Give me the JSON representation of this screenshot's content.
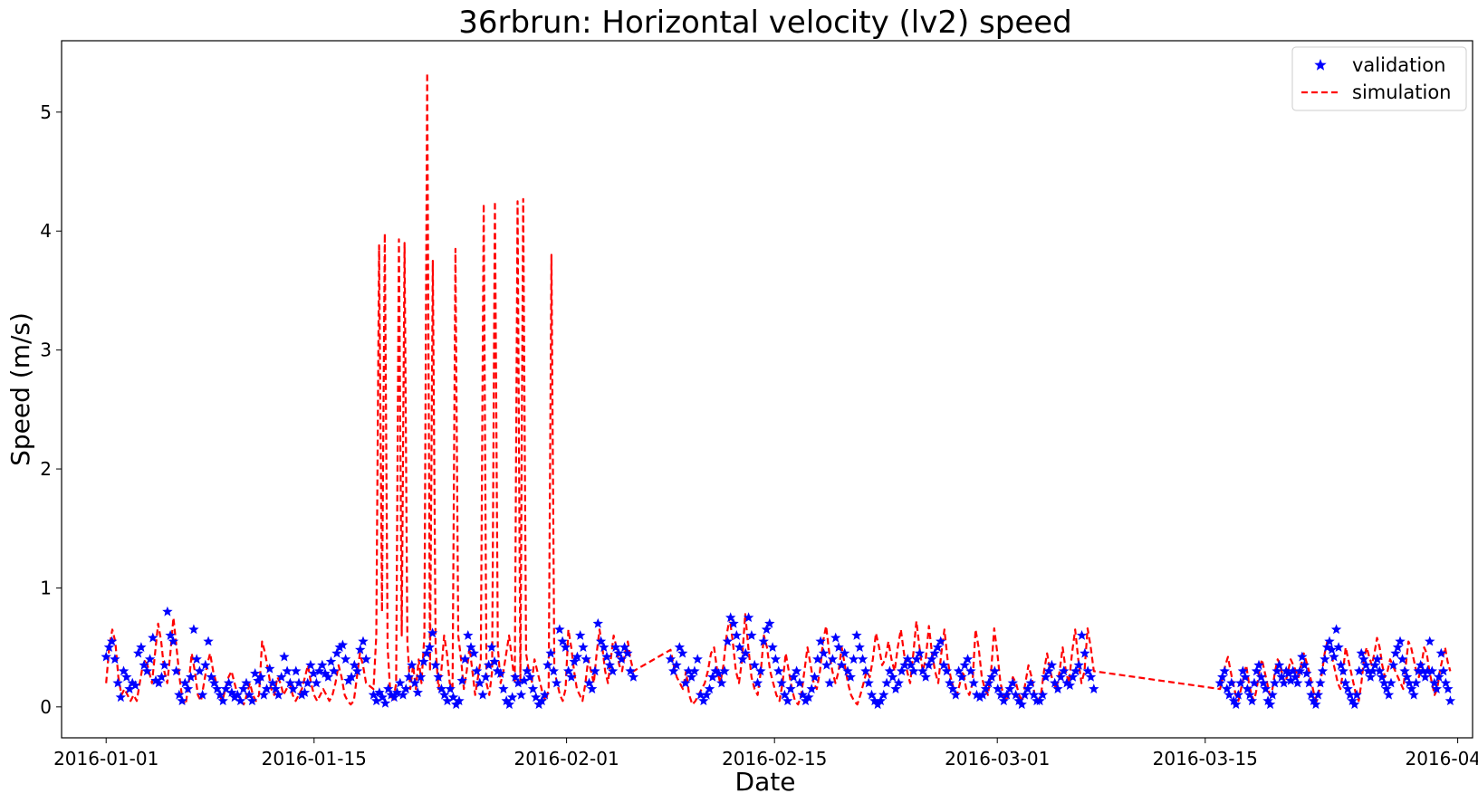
{
  "chart_data": {
    "type": "line",
    "title": "36rbrun: Horizontal velocity (lv2) speed",
    "xlabel": "Date",
    "ylabel": "Speed (m/s)",
    "x_axis": "date",
    "xlim": [
      "2015-12-29",
      "2016-04-02"
    ],
    "ylim": [
      -0.26,
      5.6
    ],
    "x_ticks": [
      "2016-01-01",
      "2016-01-15",
      "2016-02-01",
      "2016-02-15",
      "2016-03-01",
      "2016-03-15",
      "2016-04-01"
    ],
    "y_ticks": [
      0,
      1,
      2,
      3,
      4,
      5
    ],
    "grid": false,
    "legend_position": "top-right",
    "series": [
      {
        "name": "validation",
        "style": "marker-star",
        "color": "#0000ff",
        "segments": [
          {
            "start": "2016-01-01",
            "end": "2016-01-18",
            "values": [
              0.42,
              0.5,
              0.55,
              0.4,
              0.2,
              0.08,
              0.3,
              0.25,
              0.15,
              0.2,
              0.18,
              0.45,
              0.5,
              0.35,
              0.3,
              0.4,
              0.58,
              0.22,
              0.2,
              0.25,
              0.35,
              0.8,
              0.6,
              0.55,
              0.3,
              0.1,
              0.05,
              0.2,
              0.15,
              0.25,
              0.65,
              0.4,
              0.3,
              0.1,
              0.35,
              0.55,
              0.25,
              0.2,
              0.15,
              0.1,
              0.05,
              0.15,
              0.2,
              0.12,
              0.08,
              0.1,
              0.05,
              0.15,
              0.2,
              0.1,
              0.05,
              0.28,
              0.22,
              0.25,
              0.1,
              0.15,
              0.32,
              0.2,
              0.15,
              0.1,
              0.25,
              0.42,
              0.3,
              0.2,
              0.15,
              0.3,
              0.2,
              0.1,
              0.12,
              0.2,
              0.35,
              0.28,
              0.2,
              0.3,
              0.35,
              0.28,
              0.25,
              0.38,
              0.3,
              0.45,
              0.5,
              0.52,
              0.4,
              0.22,
              0.25,
              0.35,
              0.3,
              0.48,
              0.55,
              0.4
            ]
          },
          {
            "start": "2016-01-19",
            "end": "2016-02-05",
            "values": [
              0.1,
              0.05,
              0.12,
              0.08,
              0.03,
              0.15,
              0.1,
              0.08,
              0.12,
              0.2,
              0.1,
              0.15,
              0.25,
              0.35,
              0.2,
              0.12,
              0.25,
              0.38,
              0.45,
              0.5,
              0.62,
              0.35,
              0.25,
              0.15,
              0.1,
              0.05,
              0.15,
              0.08,
              0.02,
              0.05,
              0.22,
              0.4,
              0.6,
              0.5,
              0.45,
              0.3,
              0.2,
              0.1,
              0.25,
              0.35,
              0.5,
              0.38,
              0.3,
              0.28,
              0.15,
              0.05,
              0.02,
              0.08,
              0.25,
              0.2,
              0.1,
              0.22,
              0.3,
              0.25,
              0.15,
              0.08,
              0.02,
              0.05,
              0.1,
              0.35,
              0.45,
              0.3,
              0.2,
              0.65,
              0.55,
              0.5,
              0.3,
              0.25,
              0.38,
              0.42,
              0.6,
              0.5,
              0.4,
              0.2,
              0.15,
              0.3,
              0.7,
              0.55,
              0.5,
              0.42,
              0.35,
              0.3,
              0.5,
              0.45,
              0.4,
              0.5,
              0.45,
              0.3,
              0.25
            ]
          },
          {
            "start": "2016-02-08",
            "end": "2016-03-07",
            "values": [
              0.4,
              0.3,
              0.35,
              0.5,
              0.45,
              0.2,
              0.3,
              0.25,
              0.3,
              0.4,
              0.1,
              0.05,
              0.1,
              0.15,
              0.25,
              0.3,
              0.28,
              0.2,
              0.3,
              0.55,
              0.75,
              0.7,
              0.6,
              0.5,
              0.4,
              0.45,
              0.75,
              0.6,
              0.35,
              0.2,
              0.3,
              0.55,
              0.65,
              0.7,
              0.5,
              0.4,
              0.3,
              0.2,
              0.1,
              0.05,
              0.15,
              0.25,
              0.3,
              0.2,
              0.1,
              0.05,
              0.08,
              0.15,
              0.25,
              0.4,
              0.55,
              0.45,
              0.35,
              0.2,
              0.4,
              0.58,
              0.5,
              0.35,
              0.45,
              0.3,
              0.25,
              0.4,
              0.6,
              0.5,
              0.4,
              0.3,
              0.2,
              0.1,
              0.05,
              0.02,
              0.05,
              0.1,
              0.2,
              0.3,
              0.25,
              0.15,
              0.2,
              0.3,
              0.35,
              0.4,
              0.35,
              0.3,
              0.4,
              0.45,
              0.3,
              0.25,
              0.35,
              0.4,
              0.45,
              0.5,
              0.55,
              0.35,
              0.3,
              0.2,
              0.15,
              0.1,
              0.3,
              0.25,
              0.35,
              0.4,
              0.3,
              0.2,
              0.1,
              0.08,
              0.1,
              0.15,
              0.2,
              0.25,
              0.3,
              0.15,
              0.1,
              0.05,
              0.1,
              0.15,
              0.2,
              0.1,
              0.05,
              0.02,
              0.1,
              0.15,
              0.2,
              0.1,
              0.05,
              0.05,
              0.1,
              0.25,
              0.3,
              0.35,
              0.2,
              0.15,
              0.25,
              0.3,
              0.2,
              0.18,
              0.25,
              0.3,
              0.35,
              0.6,
              0.45,
              0.3,
              0.25,
              0.15
            ]
          },
          {
            "start": "2016-03-16",
            "end": "2016-03-31",
            "values": [
              0.2,
              0.25,
              0.3,
              0.15,
              0.1,
              0.2,
              0.05,
              0.02,
              0.1,
              0.2,
              0.3,
              0.25,
              0.15,
              0.1,
              0.05,
              0.2,
              0.3,
              0.35,
              0.25,
              0.2,
              0.15,
              0.05,
              0.02,
              0.1,
              0.2,
              0.3,
              0.35,
              0.25,
              0.2,
              0.3,
              0.28,
              0.22,
              0.3,
              0.25,
              0.2,
              0.3,
              0.42,
              0.35,
              0.28,
              0.2,
              0.1,
              0.05,
              0.02,
              0.1,
              0.2,
              0.3,
              0.4,
              0.5,
              0.55,
              0.48,
              0.42,
              0.65,
              0.5,
              0.35,
              0.3,
              0.2,
              0.15,
              0.1,
              0.05,
              0.02,
              0.1,
              0.3,
              0.45,
              0.4,
              0.35,
              0.3,
              0.25,
              0.3,
              0.35,
              0.4,
              0.3,
              0.25,
              0.2,
              0.15,
              0.1,
              0.2,
              0.35,
              0.45,
              0.5,
              0.55,
              0.4,
              0.3,
              0.25,
              0.2,
              0.15,
              0.1,
              0.2,
              0.3,
              0.35,
              0.3,
              0.25,
              0.3,
              0.55,
              0.3,
              0.2,
              0.15,
              0.25,
              0.45,
              0.3,
              0.2,
              0.15,
              0.05
            ]
          }
        ]
      },
      {
        "name": "simulation",
        "style": "dashed-line",
        "color": "#ff0000",
        "segments": [
          {
            "start": "2016-01-01",
            "end": "2016-01-18",
            "values": [
              0.2,
              0.5,
              0.65,
              0.55,
              0.25,
              0.1,
              0.15,
              0.1,
              0.05,
              0.1,
              0.05,
              0.2,
              0.35,
              0.4,
              0.3,
              0.2,
              0.45,
              0.7,
              0.55,
              0.3,
              0.2,
              0.45,
              0.75,
              0.5,
              0.25,
              0.05,
              0.02,
              0.2,
              0.45,
              0.3,
              0.1,
              0.05,
              0.2,
              0.35,
              0.45,
              0.3,
              0.2,
              0.1,
              0.05,
              0.15,
              0.25,
              0.3,
              0.2,
              0.1,
              0.05,
              0.02,
              0.1,
              0.2,
              0.1,
              0.05,
              0.1,
              0.55,
              0.45,
              0.3,
              0.15,
              0.1,
              0.25,
              0.2,
              0.1,
              0.15,
              0.2,
              0.1,
              0.05,
              0.1,
              0.15,
              0.25,
              0.35,
              0.2,
              0.1,
              0.05,
              0.1,
              0.15,
              0.1,
              0.05,
              0.1,
              0.2,
              0.35,
              0.25,
              0.1,
              0.05,
              0.02,
              0.05,
              0.25,
              0.45,
              0.35,
              0.2
            ]
          },
          {
            "start": "2016-01-19",
            "end": "2016-02-05",
            "values": [
              0.15,
              0.6,
              3.88,
              0.8,
              3.98,
              0.5,
              0.1,
              0.05,
              0.2,
              3.93,
              0.6,
              3.9,
              0.55,
              0.15,
              0.35,
              0.15,
              0.4,
              0.2,
              0.6,
              5.33,
              0.3,
              3.75,
              0.5,
              0.15,
              0.3,
              0.6,
              0.45,
              0.2,
              0.15,
              3.85,
              0.6,
              0.4,
              0.15,
              0.3,
              0.5,
              0.3,
              0.1,
              0.25,
              0.4,
              4.23,
              0.2,
              0.1,
              0.3,
              4.25,
              0.5,
              0.2,
              0.3,
              0.45,
              0.6,
              0.4,
              0.2,
              4.25,
              0.2,
              4.27,
              0.45,
              0.3,
              0.2,
              0.4,
              0.3,
              0.2,
              0.1,
              0.05,
              0.15,
              3.8,
              0.3,
              0.2,
              0.1,
              0.05,
              0.15,
              0.65,
              0.5,
              0.3,
              0.15,
              0.1,
              0.05,
              0.2,
              0.4,
              0.3,
              0.2,
              0.45,
              0.65,
              0.5,
              0.3,
              0.2,
              0.4,
              0.6,
              0.5,
              0.35,
              0.3,
              0.45,
              0.55,
              0.4,
              0.3
            ]
          },
          {
            "start": "2016-02-08",
            "end": "2016-03-07",
            "values": [
              0.48,
              0.35,
              0.25,
              0.2,
              0.15,
              0.3,
              0.1,
              0.02,
              0.05,
              0.1,
              0.15,
              0.2,
              0.3,
              0.45,
              0.5,
              0.3,
              0.2,
              0.35,
              0.6,
              0.75,
              0.55,
              0.3,
              0.2,
              0.4,
              0.78,
              0.5,
              0.25,
              0.15,
              0.1,
              0.3,
              0.6,
              0.5,
              0.3,
              0.2,
              0.1,
              0.05,
              0.2,
              0.45,
              0.3,
              0.15,
              0.05,
              0.02,
              0.1,
              0.3,
              0.5,
              0.35,
              0.2,
              0.15,
              0.3,
              0.55,
              0.68,
              0.45,
              0.3,
              0.2,
              0.3,
              0.5,
              0.35,
              0.2,
              0.1,
              0.05,
              0.02,
              0.1,
              0.2,
              0.3,
              0.25,
              0.4,
              0.62,
              0.5,
              0.35,
              0.4,
              0.55,
              0.4,
              0.3,
              0.5,
              0.65,
              0.45,
              0.3,
              0.2,
              0.45,
              0.72,
              0.5,
              0.3,
              0.4,
              0.68,
              0.45,
              0.3,
              0.2,
              0.45,
              0.65,
              0.4,
              0.25,
              0.15,
              0.1,
              0.2,
              0.3,
              0.15,
              0.1,
              0.2,
              0.65,
              0.5,
              0.25,
              0.15,
              0.1,
              0.3,
              0.66,
              0.45,
              0.2,
              0.1,
              0.05,
              0.15,
              0.25,
              0.2,
              0.1,
              0.05,
              0.2,
              0.35,
              0.25,
              0.1,
              0.05,
              0.1,
              0.3,
              0.45,
              0.3,
              0.2,
              0.15,
              0.3,
              0.5,
              0.3,
              0.2,
              0.45,
              0.65,
              0.4,
              0.2,
              0.3,
              0.66,
              0.5,
              0.3
            ]
          },
          {
            "start": "2016-03-16",
            "end": "2016-03-31",
            "values": [
              0.15,
              0.25,
              0.35,
              0.42,
              0.3,
              0.2,
              0.1,
              0.05,
              0.15,
              0.25,
              0.35,
              0.2,
              0.1,
              0.05,
              0.15,
              0.3,
              0.4,
              0.3,
              0.2,
              0.1,
              0.15,
              0.3,
              0.4,
              0.35,
              0.25,
              0.2,
              0.3,
              0.4,
              0.35,
              0.3,
              0.25,
              0.35,
              0.45,
              0.38,
              0.3,
              0.2,
              0.1,
              0.05,
              0.15,
              0.3,
              0.45,
              0.55,
              0.48,
              0.4,
              0.3,
              0.2,
              0.15,
              0.3,
              0.5,
              0.4,
              0.3,
              0.2,
              0.1,
              0.05,
              0.2,
              0.4,
              0.5,
              0.42,
              0.35,
              0.45,
              0.58,
              0.5,
              0.35,
              0.25,
              0.3,
              0.4,
              0.35,
              0.3,
              0.25,
              0.2,
              0.15,
              0.35,
              0.55,
              0.5,
              0.4,
              0.3,
              0.25,
              0.35,
              0.5,
              0.45,
              0.3,
              0.2,
              0.1,
              0.15,
              0.3,
              0.4,
              0.5,
              0.38,
              0.3
            ]
          }
        ]
      }
    ]
  }
}
